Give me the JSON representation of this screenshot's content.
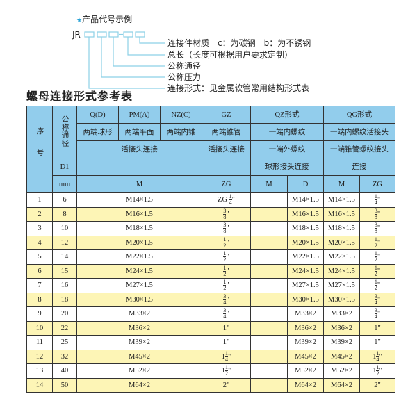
{
  "example": {
    "heading": "产品代号示例",
    "code_prefix": "JR",
    "accent": "#2aa3d6",
    "labels": [
      "连接件材质　c：为碳钢　b：为不锈钢",
      "总长（长度可根据用户要求定制）",
      "公称通径",
      "公称压力",
      "连接形式：见金属软管常用结构形式表"
    ]
  },
  "table_title": "螺母连接形式参考表",
  "header": {
    "seq": "序号",
    "nominal": "公称通径",
    "d1": "D1",
    "mm": "mm",
    "types": [
      "Q(D)",
      "PM(A)",
      "NZ(C)",
      "GZ",
      "QZ形式",
      "QG形式"
    ],
    "shapes": [
      "两端球形",
      "两端平面",
      "两端内锥",
      "两端锥管",
      "一端内螺纹",
      "一端内螺纹活接头"
    ],
    "conn1": [
      "活接头连接",
      "活接头连接",
      "一端外螺纹",
      "一端锥管螺纹接头"
    ],
    "conn2": [
      "球形接头连接",
      "连接"
    ],
    "units": [
      "M",
      "ZG",
      "M",
      "D",
      "M",
      "ZG"
    ]
  },
  "rows": [
    {
      "no": "1",
      "dn": "6",
      "m": "M14×1.5",
      "zg": {
        "pre": "ZG",
        "w": "",
        "n": "1",
        "d": "4"
      },
      "qzd": "M14×1.5",
      "qgm": "M14×1.5",
      "qgzg": {
        "w": "",
        "n": "1",
        "d": "4"
      }
    },
    {
      "no": "2",
      "dn": "8",
      "m": "M16×1.5",
      "zg": {
        "w": "",
        "n": "3",
        "d": "8"
      },
      "qzd": "M16×1.5",
      "qgm": "M16×1.5",
      "qgzg": {
        "w": "",
        "n": "3",
        "d": "8"
      }
    },
    {
      "no": "3",
      "dn": "10",
      "m": "M18×1.5",
      "zg": {
        "w": "",
        "n": "3",
        "d": "8"
      },
      "qzd": "M18×1.5",
      "qgm": "M18×1.5",
      "qgzg": {
        "w": "",
        "n": "3",
        "d": "8"
      }
    },
    {
      "no": "4",
      "dn": "12",
      "m": "M20×1.5",
      "zg": {
        "w": "",
        "n": "1",
        "d": "2"
      },
      "qzd": "M20×1.5",
      "qgm": "M20×1.5",
      "qgzg": {
        "w": "",
        "n": "1",
        "d": "2"
      }
    },
    {
      "no": "5",
      "dn": "14",
      "m": "M22×1.5",
      "zg": {
        "w": "",
        "n": "1",
        "d": "2"
      },
      "qzd": "M22×1.5",
      "qgm": "M22×1.5",
      "qgzg": {
        "w": "",
        "n": "1",
        "d": "2"
      }
    },
    {
      "no": "6",
      "dn": "15",
      "m": "M24×1.5",
      "zg": {
        "w": "",
        "n": "1",
        "d": "2"
      },
      "qzd": "M24×1.5",
      "qgm": "M24×1.5",
      "qgzg": {
        "w": "",
        "n": "1",
        "d": "2"
      }
    },
    {
      "no": "7",
      "dn": "16",
      "m": "M27×1.5",
      "zg": {
        "w": "",
        "n": "1",
        "d": "2"
      },
      "qzd": "M27×1.5",
      "qgm": "M27×1.5",
      "qgzg": {
        "w": "",
        "n": "1",
        "d": "2"
      }
    },
    {
      "no": "8",
      "dn": "18",
      "m": "M30×1.5",
      "zg": {
        "w": "",
        "n": "3",
        "d": "4"
      },
      "qzd": "M30×1.5",
      "qgm": "M30×1.5",
      "qgzg": {
        "w": "",
        "n": "3",
        "d": "4"
      }
    },
    {
      "no": "9",
      "dn": "20",
      "m": "M33×2",
      "zg": {
        "w": "",
        "n": "3",
        "d": "4"
      },
      "qzd": "M33×2",
      "qgm": "M33×2",
      "qgzg": {
        "w": "",
        "n": "3",
        "d": "4"
      }
    },
    {
      "no": "10",
      "dn": "22",
      "m": "M36×2",
      "zg": {
        "w": "1",
        "n": "",
        "d": ""
      },
      "qzd": "M36×2",
      "qgm": "M36×2",
      "qgzg": {
        "w": "1",
        "n": "",
        "d": ""
      }
    },
    {
      "no": "11",
      "dn": "25",
      "m": "M39×2",
      "zg": {
        "w": "1",
        "n": "",
        "d": ""
      },
      "qzd": "M39×2",
      "qgm": "M39×2",
      "qgzg": {
        "w": "1",
        "n": "",
        "d": ""
      }
    },
    {
      "no": "12",
      "dn": "32",
      "m": "M45×2",
      "zg": {
        "w": "1",
        "n": "1",
        "d": "4"
      },
      "qzd": "M45×2",
      "qgm": "M45×2",
      "qgzg": {
        "w": "1",
        "n": "1",
        "d": "4"
      }
    },
    {
      "no": "13",
      "dn": "40",
      "m": "M52×2",
      "zg": {
        "w": "1",
        "n": "1",
        "d": "2"
      },
      "qzd": "M52×2",
      "qgm": "M52×2",
      "qgzg": {
        "w": "1",
        "n": "1",
        "d": "2"
      }
    },
    {
      "no": "14",
      "dn": "50",
      "m": "M64×2",
      "zg": {
        "w": "2",
        "n": "",
        "d": ""
      },
      "qzd": "M64×2",
      "qgm": "M64×2",
      "qgzg": {
        "w": "2",
        "n": "",
        "d": ""
      }
    }
  ],
  "colors": {
    "header": "#92cdec",
    "stripe": "#fdf5b6",
    "line": "#8cd0e6"
  }
}
